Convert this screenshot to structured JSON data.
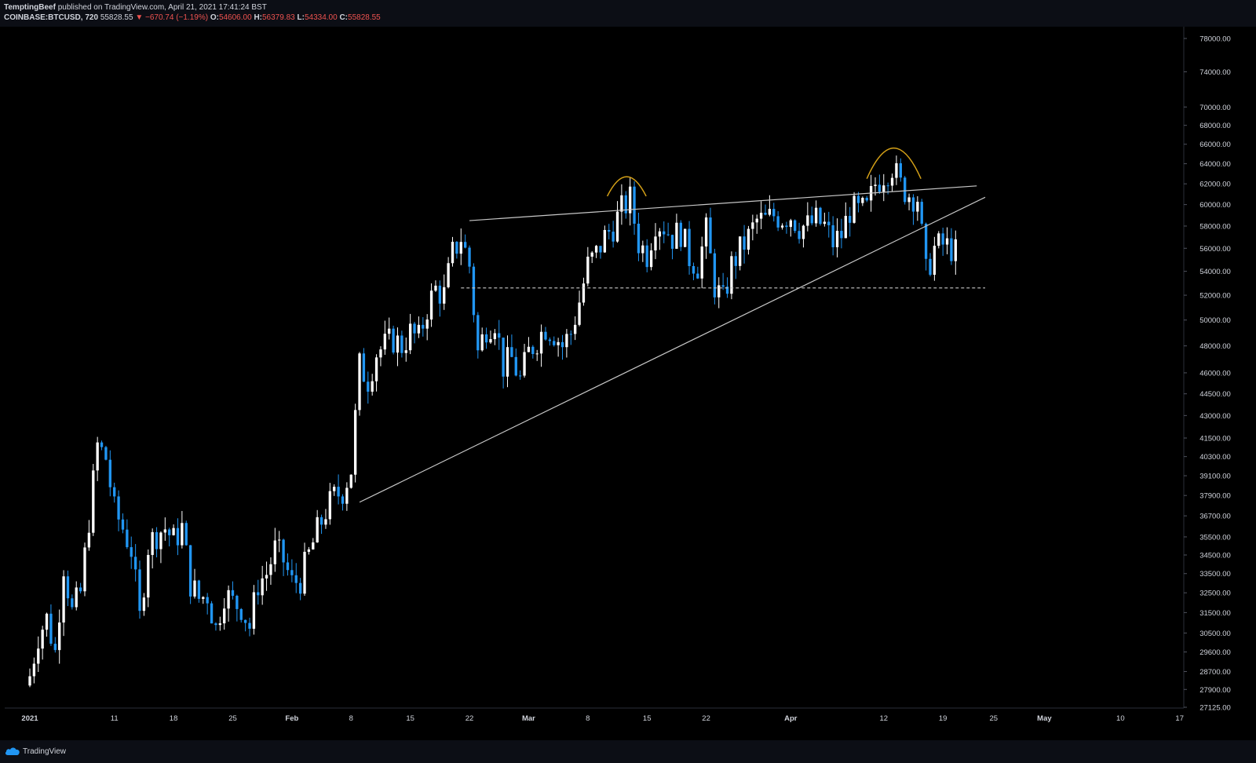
{
  "header": {
    "author": "TemptingBeef",
    "published": "published on TradingView.com, April 21, 2021 17:41:24 BST",
    "symbol": "COINBASE:BTCUSD, 720",
    "last_price": "55828.55",
    "change": "▼ −670.74 (−1.19%)",
    "open_label": "O:",
    "open": "54606.00",
    "high_label": "H:",
    "high": "56379.83",
    "low_label": "L:",
    "low": "54334.00",
    "close_label": "C:",
    "close": "55828.55"
  },
  "footer": {
    "brand": "TradingView"
  },
  "chart_data": {
    "type": "candlestick",
    "scale": "log",
    "ylim": [
      27125,
      80500
    ],
    "x_unit": "days since 2021-01-01 (12h candles)",
    "y_ticks": [
      78000,
      74000,
      70000,
      68000,
      66000,
      64000,
      62000,
      60000,
      58000,
      56000,
      54000,
      52000,
      50000,
      48000,
      46000,
      44500,
      43000,
      41500,
      40300,
      39100,
      37900,
      36700,
      35500,
      34500,
      33500,
      32500,
      31500,
      30500,
      29600,
      28700,
      27900,
      27125
    ],
    "y_tick_labels": [
      "78000.00",
      "74000.00",
      "70000.00",
      "68000.00",
      "66000.00",
      "64000.00",
      "62000.00",
      "60000.00",
      "58000.00",
      "56000.00",
      "54000.00",
      "52000.00",
      "50000.00",
      "48000.00",
      "46000.00",
      "44500.00",
      "43000.00",
      "41500.00",
      "40300.00",
      "39100.00",
      "37900.00",
      "36700.00",
      "35500.00",
      "34500.00",
      "33500.00",
      "32500.00",
      "31500.00",
      "30500.00",
      "29600.00",
      "28700.00",
      "27900.00",
      "27125.00"
    ],
    "x_ticks": [
      {
        "day": 0,
        "label": "2021"
      },
      {
        "day": 10,
        "label": "11"
      },
      {
        "day": 17,
        "label": "18"
      },
      {
        "day": 24,
        "label": "25"
      },
      {
        "day": 31,
        "label": "Feb"
      },
      {
        "day": 38,
        "label": "8"
      },
      {
        "day": 45,
        "label": "15"
      },
      {
        "day": 52,
        "label": "22"
      },
      {
        "day": 59,
        "label": "Mar"
      },
      {
        "day": 66,
        "label": "8"
      },
      {
        "day": 73,
        "label": "15"
      },
      {
        "day": 80,
        "label": "22"
      },
      {
        "day": 90,
        "label": "Apr"
      },
      {
        "day": 101,
        "label": "12"
      },
      {
        "day": 108,
        "label": "19"
      },
      {
        "day": 114,
        "label": "25"
      },
      {
        "day": 120,
        "label": "May"
      },
      {
        "day": 129,
        "label": "10"
      },
      {
        "day": 136,
        "label": "17"
      }
    ],
    "anchors": [
      [
        0,
        28500
      ],
      [
        1,
        30400
      ],
      [
        2,
        31200
      ],
      [
        3,
        29600
      ],
      [
        4,
        34000
      ],
      [
        5,
        31500
      ],
      [
        6,
        32500
      ],
      [
        7,
        36500
      ],
      [
        8,
        41000
      ],
      [
        9,
        40200
      ],
      [
        10,
        37000
      ],
      [
        11,
        36000
      ],
      [
        12,
        34800
      ],
      [
        13,
        31200
      ],
      [
        14,
        35000
      ],
      [
        15,
        35700
      ],
      [
        16,
        36000
      ],
      [
        17,
        35300
      ],
      [
        18,
        36000
      ],
      [
        19,
        33000
      ],
      [
        20,
        32200
      ],
      [
        21,
        32400
      ],
      [
        22,
        30700
      ],
      [
        23,
        32500
      ],
      [
        24,
        32000
      ],
      [
        25,
        31800
      ],
      [
        26,
        30800
      ],
      [
        27,
        33000
      ],
      [
        28,
        33500
      ],
      [
        29,
        34800
      ],
      [
        30,
        34200
      ],
      [
        31,
        33000
      ],
      [
        32,
        33200
      ],
      [
        33,
        34500
      ],
      [
        34,
        35800
      ],
      [
        35,
        37000
      ],
      [
        36,
        37800
      ],
      [
        37,
        38200
      ],
      [
        38,
        39500
      ],
      [
        39,
        46500
      ],
      [
        40,
        45500
      ],
      [
        41,
        47500
      ],
      [
        42,
        48000
      ],
      [
        43,
        48500
      ],
      [
        44,
        48000
      ],
      [
        45,
        49000
      ],
      [
        46,
        48500
      ],
      [
        47,
        51000
      ],
      [
        48,
        52500
      ],
      [
        49,
        52000
      ],
      [
        50,
        55500
      ],
      [
        51,
        57000
      ],
      [
        52,
        54500
      ],
      [
        53,
        47500
      ],
      [
        54,
        49500
      ],
      [
        55,
        50000
      ],
      [
        56,
        46500
      ],
      [
        57,
        47000
      ],
      [
        58,
        45500
      ],
      [
        59,
        47500
      ],
      [
        60,
        48500
      ],
      [
        61,
        49500
      ],
      [
        62,
        49000
      ],
      [
        63,
        48000
      ],
      [
        64,
        49000
      ],
      [
        65,
        51500
      ],
      [
        66,
        54500
      ],
      [
        67,
        55500
      ],
      [
        68,
        57000
      ],
      [
        69,
        58000
      ],
      [
        70,
        59500
      ],
      [
        71,
        60500
      ],
      [
        72,
        56500
      ],
      [
        73,
        55500
      ],
      [
        74,
        58500
      ],
      [
        75,
        58000
      ],
      [
        76,
        57000
      ],
      [
        77,
        57500
      ],
      [
        78,
        55200
      ],
      [
        79,
        54500
      ],
      [
        80,
        57500
      ],
      [
        81,
        52800
      ],
      [
        82,
        51500
      ],
      [
        83,
        54500
      ],
      [
        84,
        55800
      ],
      [
        85,
        57000
      ],
      [
        86,
        58500
      ],
      [
        87,
        58500
      ],
      [
        88,
        59000
      ],
      [
        89,
        58800
      ],
      [
        90,
        59000
      ],
      [
        91,
        58000
      ],
      [
        92,
        58000
      ],
      [
        93,
        58500
      ],
      [
        94,
        58000
      ],
      [
        95,
        56500
      ],
      [
        96,
        57200
      ],
      [
        97,
        59500
      ],
      [
        98,
        59300
      ],
      [
        99,
        59500
      ],
      [
        100,
        62000
      ],
      [
        101,
        63000
      ],
      [
        102,
        63800
      ],
      [
        103,
        61800
      ],
      [
        104,
        61000
      ],
      [
        105,
        60700
      ],
      [
        106,
        53800
      ],
      [
        107,
        56000
      ],
      [
        108,
        56300
      ],
      [
        109,
        56000
      ],
      [
        109.5,
        55600
      ]
    ],
    "trendlines": [
      {
        "style": "solid",
        "from": [
          39,
          37500
        ],
        "to": [
          113,
          60700
        ]
      },
      {
        "style": "solid",
        "from": [
          52,
          58500
        ],
        "to": [
          112,
          61800
        ]
      },
      {
        "style": "dashed",
        "from": [
          51,
          52600
        ],
        "to": [
          113,
          52600
        ]
      }
    ],
    "arcs": [
      {
        "center_day": 70.6,
        "base": 60800,
        "top": 62700,
        "half_width_days": 2.3
      },
      {
        "center_day": 102.2,
        "base": 62500,
        "top": 65600,
        "half_width_days": 3.2
      }
    ],
    "colors": {
      "up": "#ffffff",
      "down": "#2196f3",
      "trendline": "#c8c8c8",
      "arc": "#d4a017",
      "axis_text": "#d1d4dc"
    }
  }
}
